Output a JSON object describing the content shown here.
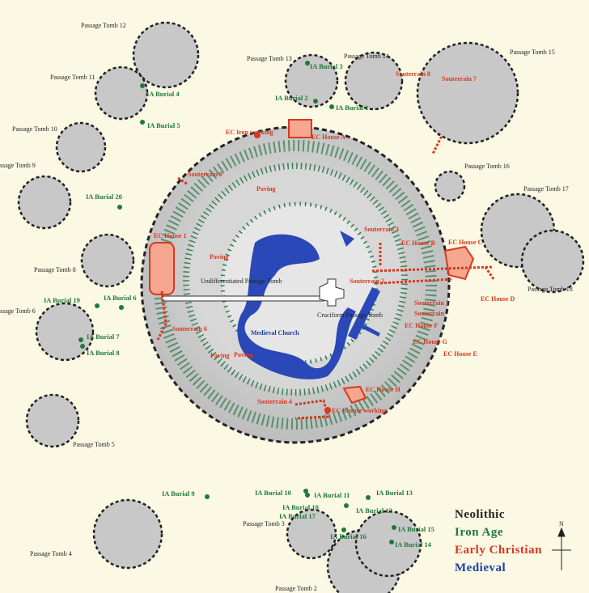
{
  "colors": {
    "neolithic": "#222222",
    "iron_age": "#1f7a3a",
    "early_christian": "#d9381e",
    "medieval": "#1e3fb0",
    "mound": "#c9c9c9"
  },
  "tombs": [
    "Passage Tomb 12",
    "Passage Tomb 11",
    "Passage Tomb 10",
    "ssage Tomb 9",
    "Passage Tomb 13",
    "Passage Tomb 14",
    "Passage Tomb 15",
    "Passage Tomb 16",
    "Passage Tomb 17",
    "Passage Tomb 8",
    "Passage Tomb 18",
    "ssage Tomb 6",
    "Passage Tomb 5",
    "Passage Tomb 4",
    "Passage Tomb 3",
    "Passage Tomb 2"
  ],
  "ia_burials": [
    "IA Burial 4",
    "IA Burial 5",
    "IA Burial 3",
    "IA Burial 2",
    "IA Burial 1",
    "IA Burial 20",
    "IA Burial 19",
    "IA Burial 6",
    "IA Burial 7",
    "IA Burial 8",
    "IA Burial 9",
    "IA Burial 10",
    "IA Burial 11",
    "IA Burial 13",
    "IA Burial 18",
    "IA Burial 17",
    "IA Burial 12",
    "IA Burial 16",
    "IA Burial 15",
    "IA Burial 14"
  ],
  "ec_features": [
    "Souterrain 8",
    "Souterrain 7",
    "EC Iron working",
    "EC House A",
    "Souterrain 9",
    "Paving",
    "Paving",
    "EC House 1",
    "Paving",
    "Souterrain 3",
    "EC House B",
    "EC House C",
    "Souterrain 2",
    "Souterrain 1",
    "Souterrain",
    "EC House D",
    "EC House F",
    "EC House G",
    "EC House E",
    "Souterrain 6",
    "Paving",
    "EC House H",
    "Souterrain 4",
    "EC Bronze working"
  ],
  "central": {
    "undiff": "Undifferentiated Passage Tomb",
    "cruciform": "Cruciform Passage Tomb",
    "church": "Medieval Church"
  },
  "legend": {
    "neolithic": "Neolithic",
    "iron_age": "Iron Age",
    "early_christian": "Early Christian",
    "medieval": "Medieval"
  },
  "north": "N"
}
